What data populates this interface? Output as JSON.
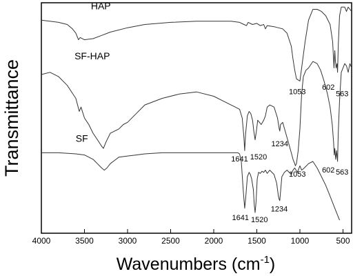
{
  "chart_data": {
    "type": "line",
    "xlabel_main": "Wavenumbers (cm",
    "xlabel_sup": "-1",
    "xlabel_end": ")",
    "ylabel": "Transmittance",
    "xlim": [
      4000,
      400
    ],
    "x_reversed": true,
    "x_ticks": [
      4000,
      3500,
      3000,
      2500,
      2000,
      1500,
      1000,
      500
    ],
    "y_ticks_visible": false,
    "grid": false,
    "series": [
      {
        "name": "HAP",
        "x": [
          4000,
          3900,
          3800,
          3700,
          3640,
          3600,
          3570,
          3550,
          3500,
          3400,
          3300,
          3200,
          3000,
          2800,
          2500,
          2200,
          2000,
          1800,
          1700,
          1650,
          1620,
          1600,
          1550,
          1500,
          1460,
          1420,
          1400,
          1380,
          1300,
          1200,
          1150,
          1100,
          1080,
          1060,
          1040,
          1020,
          1000,
          980,
          960,
          940,
          900,
          850,
          800,
          750,
          700,
          650,
          620,
          605,
          595,
          590,
          580,
          570,
          563,
          555,
          540,
          520,
          480,
          460,
          440,
          420,
          400
        ],
        "y": [
          92,
          91.5,
          91,
          90,
          88,
          86,
          83,
          84,
          83,
          83.5,
          85,
          86.5,
          88.5,
          90,
          91,
          91.5,
          91.5,
          91.5,
          91,
          90,
          89.5,
          91,
          90,
          90.5,
          89.5,
          90,
          88,
          89.5,
          89,
          88,
          86,
          80,
          74,
          69,
          65,
          64.5,
          64,
          70,
          76,
          82,
          92,
          97,
          97,
          96,
          94,
          90,
          82,
          70,
          78,
          74,
          70,
          72,
          68,
          80,
          94,
          98,
          98,
          96,
          98,
          97,
          96
        ]
      },
      {
        "name": "SF-HAP",
        "x": [
          4000,
          3900,
          3800,
          3700,
          3600,
          3560,
          3540,
          3500,
          3450,
          3400,
          3350,
          3300,
          3280,
          3250,
          3200,
          3150,
          3100,
          3050,
          3000,
          2900,
          2800,
          2600,
          2400,
          2200,
          2000,
          1900,
          1800,
          1750,
          1700,
          1670,
          1650,
          1641,
          1630,
          1610,
          1590,
          1570,
          1550,
          1535,
          1520,
          1505,
          1490,
          1470,
          1450,
          1420,
          1400,
          1380,
          1350,
          1300,
          1260,
          1240,
          1234,
          1225,
          1200,
          1150,
          1100,
          1080,
          1060,
          1053,
          1040,
          1020,
          1000,
          980,
          960,
          930,
          900,
          850,
          800,
          760,
          720,
          680,
          650,
          625,
          610,
          602,
          595,
          585,
          575,
          563,
          555,
          540,
          520,
          480,
          460,
          440,
          420,
          400
        ],
        "y": [
          67,
          68,
          66,
          62,
          56,
          50,
          52,
          47,
          44,
          40,
          37,
          34,
          33,
          36,
          40,
          41,
          42,
          44,
          45,
          49,
          53,
          56,
          58,
          59,
          57,
          55,
          53,
          52,
          51,
          47,
          38,
          32,
          40,
          48,
          50,
          49,
          46,
          41,
          37,
          41,
          46,
          45,
          44,
          46,
          48,
          52,
          53,
          52,
          47,
          42,
          41,
          44,
          45,
          38,
          31,
          28,
          26,
          25,
          26,
          32,
          42,
          58,
          66,
          69,
          70,
          73,
          72,
          69,
          64,
          58,
          52,
          44,
          36,
          30,
          33,
          28,
          32,
          27,
          40,
          55,
          68,
          72,
          71,
          68,
          72,
          70
        ]
      },
      {
        "name": "SF",
        "x": [
          4000,
          3800,
          3600,
          3500,
          3400,
          3350,
          3300,
          3270,
          3240,
          3200,
          3150,
          3100,
          3000,
          2900,
          2800,
          2600,
          2400,
          2200,
          2000,
          1800,
          1720,
          1700,
          1680,
          1660,
          1641,
          1630,
          1610,
          1590,
          1575,
          1560,
          1540,
          1530,
          1520,
          1510,
          1495,
          1480,
          1460,
          1440,
          1420,
          1400,
          1380,
          1350,
          1300,
          1270,
          1250,
          1240,
          1234,
          1225,
          1210,
          1180,
          1150,
          1100,
          1080,
          1060,
          1030,
          1000,
          980,
          950,
          900,
          850,
          800,
          750,
          700,
          650,
          600,
          560,
          540
        ],
        "y": [
          31,
          31,
          30.5,
          30,
          28,
          26,
          24,
          23,
          24,
          26,
          27.5,
          29,
          29.5,
          30,
          30.5,
          31,
          31,
          31,
          31,
          31,
          31,
          30.5,
          27,
          15,
          5.5,
          10,
          20,
          22,
          21,
          19,
          14,
          7,
          3.5,
          8,
          19,
          22,
          21.5,
          22.5,
          22,
          23,
          21.5,
          23,
          21,
          17,
          11,
          9.5,
          9,
          13,
          20,
          22,
          23,
          21,
          23,
          24,
          22,
          25,
          23,
          24,
          26,
          27,
          24,
          20,
          16,
          11,
          6,
          2,
          0
        ]
      }
    ],
    "series_labels": [
      {
        "name": "HAP",
        "text": "HAP",
        "x": 3310,
        "y": 97
      },
      {
        "name": "SF-HAP",
        "text": "SF-HAP",
        "x": 3410,
        "y": 74
      },
      {
        "name": "SF",
        "text": "SF",
        "x": 3530,
        "y": 36
      }
    ],
    "peak_labels": [
      {
        "series": "HAP",
        "text": "1053",
        "x": 1030,
        "y": 58
      },
      {
        "series": "HAP",
        "text": "602",
        "x": 670,
        "y": 60
      },
      {
        "series": "HAP",
        "text": "563",
        "x": 510,
        "y": 57
      },
      {
        "series": "SF-HAP",
        "text": "1641",
        "x": 1700,
        "y": 27
      },
      {
        "series": "SF-HAP",
        "text": "1520",
        "x": 1480,
        "y": 28
      },
      {
        "series": "SF-HAP",
        "text": "1234",
        "x": 1234,
        "y": 34
      },
      {
        "series": "SF-HAP",
        "text": "1053",
        "x": 1030,
        "y": 20
      },
      {
        "series": "SF-HAP",
        "text": "602",
        "x": 670,
        "y": 22
      },
      {
        "series": "SF-HAP",
        "text": "563",
        "x": 510,
        "y": 21
      },
      {
        "series": "SF",
        "text": "1641",
        "x": 1690,
        "y": 0
      },
      {
        "series": "SF",
        "text": "1520",
        "x": 1470,
        "y": -1
      },
      {
        "series": "SF",
        "text": "1234",
        "x": 1240,
        "y": 4
      }
    ],
    "ylim": [
      -6,
      100
    ]
  }
}
